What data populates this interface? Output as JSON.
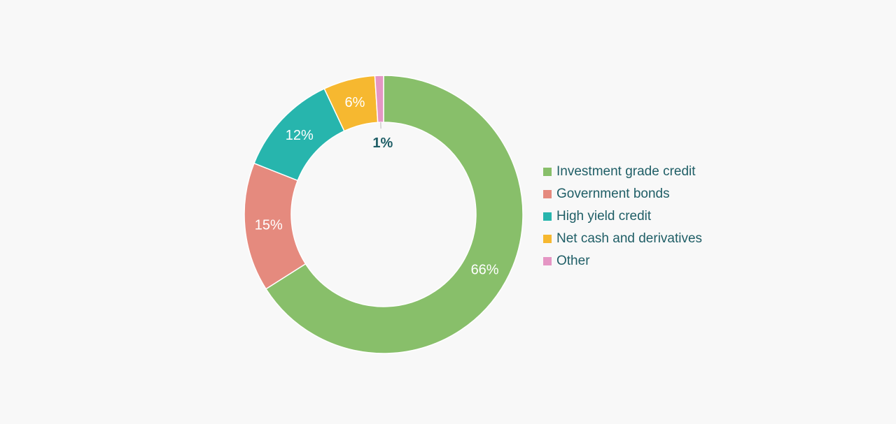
{
  "chart_data": {
    "type": "pie",
    "style": "donut",
    "title": "",
    "categories": [
      "Investment grade credit",
      "Government bonds",
      "High yield credit",
      "Net cash and derivatives",
      "Other"
    ],
    "values": [
      66,
      15,
      12,
      6,
      1
    ],
    "value_labels": [
      "66%",
      "15%",
      "12%",
      "6%",
      "1%"
    ],
    "colors": [
      "#88bf6a",
      "#e58a7e",
      "#27b5ad",
      "#f6b830",
      "#e596c4"
    ],
    "legend": {
      "position": "right",
      "items": [
        {
          "label": "Investment grade credit",
          "color": "#88bf6a"
        },
        {
          "label": "Government bonds",
          "color": "#e58a7e"
        },
        {
          "label": "High yield credit",
          "color": "#27b5ad"
        },
        {
          "label": "Net cash and derivatives",
          "color": "#f6b830"
        },
        {
          "label": "Other",
          "color": "#e596c4"
        }
      ]
    }
  },
  "theme": {
    "background": "#f8f8f8",
    "text_color": "#1f5e66"
  }
}
